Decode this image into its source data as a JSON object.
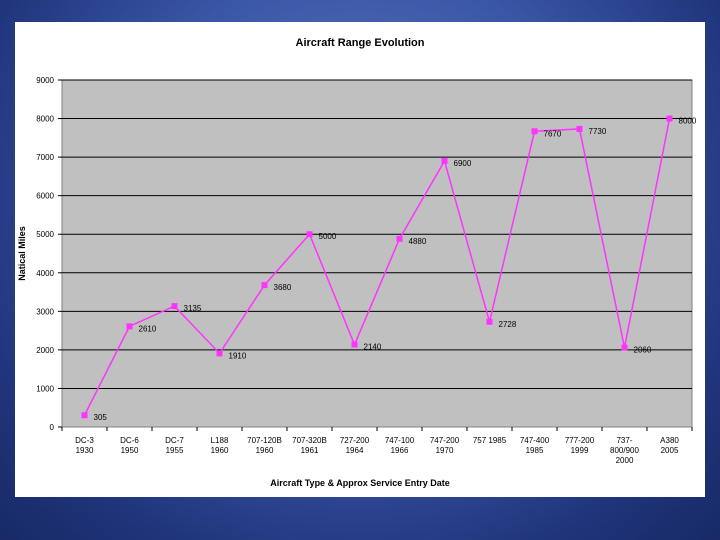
{
  "chart_data": {
    "type": "line",
    "title": "Aircraft Range Evolution",
    "xlabel": "Aircraft Type & Approx Service Entry Date",
    "ylabel": "Natical Miles",
    "ylim": [
      0,
      9000
    ],
    "yticks": [
      0,
      1000,
      2000,
      3000,
      4000,
      5000,
      6000,
      7000,
      8000,
      9000
    ],
    "grid": "horizontal",
    "colors": {
      "line": "#ff33ff",
      "marker": "#ff33ff",
      "plot_bg": "#c0c0c0",
      "panel_bg": "#ffffff"
    },
    "categories": [
      [
        "DC-3",
        "1930"
      ],
      [
        "DC-6",
        "1950"
      ],
      [
        "DC-7",
        "1955"
      ],
      [
        "L188",
        "1960"
      ],
      [
        "707-120B",
        "1960"
      ],
      [
        "707-320B",
        "1961"
      ],
      [
        "727-200",
        "1964"
      ],
      [
        "747-100",
        "1966"
      ],
      [
        "747-200",
        "1970"
      ],
      [
        "757 1985"
      ],
      [
        "747-400",
        "1985"
      ],
      [
        "777-200",
        "1999"
      ],
      [
        "737-",
        "800/900",
        "2000"
      ],
      [
        "A380",
        "2005"
      ]
    ],
    "values": [
      305,
      2610,
      3135,
      1910,
      3680,
      5000,
      2140,
      4880,
      6900,
      2728,
      7670,
      7730,
      2060,
      8000
    ],
    "labels": [
      "305",
      "2610",
      "3135",
      "1910",
      "3680",
      "5000",
      "2140",
      "4880",
      "6900",
      "2728",
      "7670",
      "7730",
      "2060",
      "8000"
    ]
  }
}
